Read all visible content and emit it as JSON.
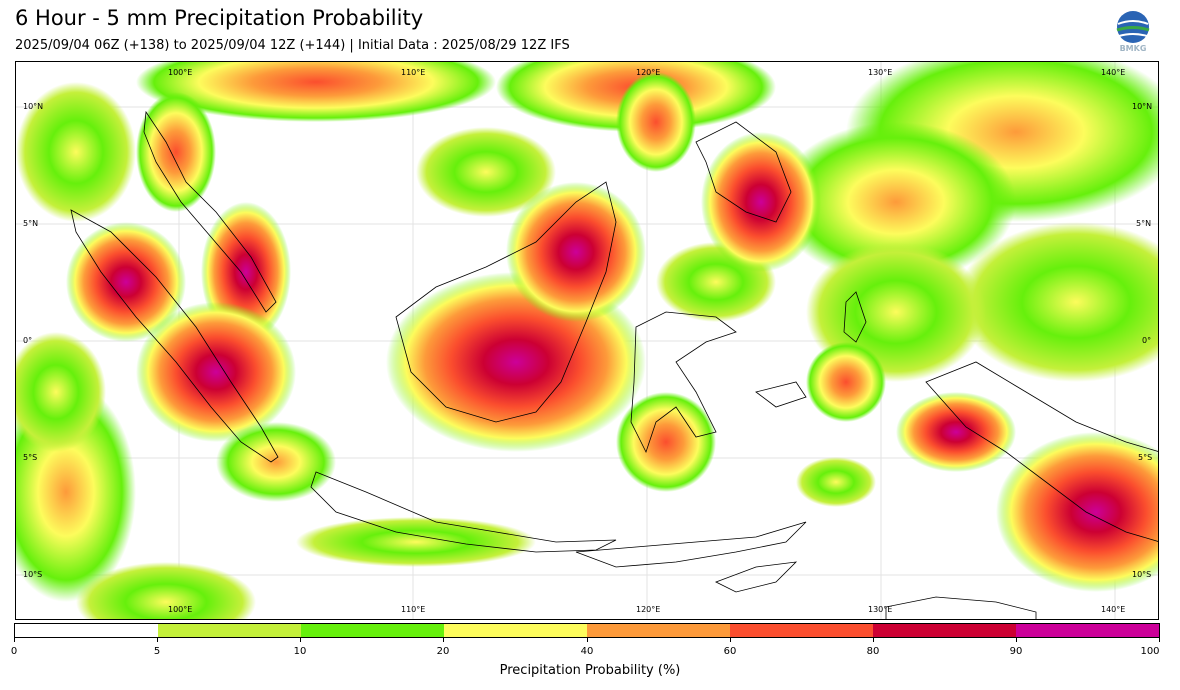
{
  "header": {
    "title": "6 Hour - 5 mm Precipitation Probability",
    "subtitle": "2025/09/04 06Z (+138) to 2025/09/04 12Z (+144) | Initial Data : 2025/08/29 12Z IFS",
    "logo_text": "BMKG"
  },
  "map": {
    "lon_labels": [
      "100°E",
      "110°E",
      "120°E",
      "130°E",
      "140°E"
    ],
    "lat_labels": [
      "10°N",
      "5°N",
      "0°",
      "5°S",
      "10°S"
    ],
    "lon_values": [
      100,
      110,
      120,
      130,
      140
    ],
    "lat_values": [
      10,
      5,
      0,
      -5,
      -10
    ]
  },
  "colorbar": {
    "label": "Precipitation Probability (%)",
    "ticks": [
      "0",
      "5",
      "10",
      "20",
      "40",
      "60",
      "80",
      "90",
      "100"
    ],
    "colors": [
      "#ffffff",
      "#c4f03a",
      "#66f00c",
      "#fdfc5c",
      "#fd9a3a",
      "#fb4e2e",
      "#cc0033",
      "#cc0099"
    ]
  }
}
